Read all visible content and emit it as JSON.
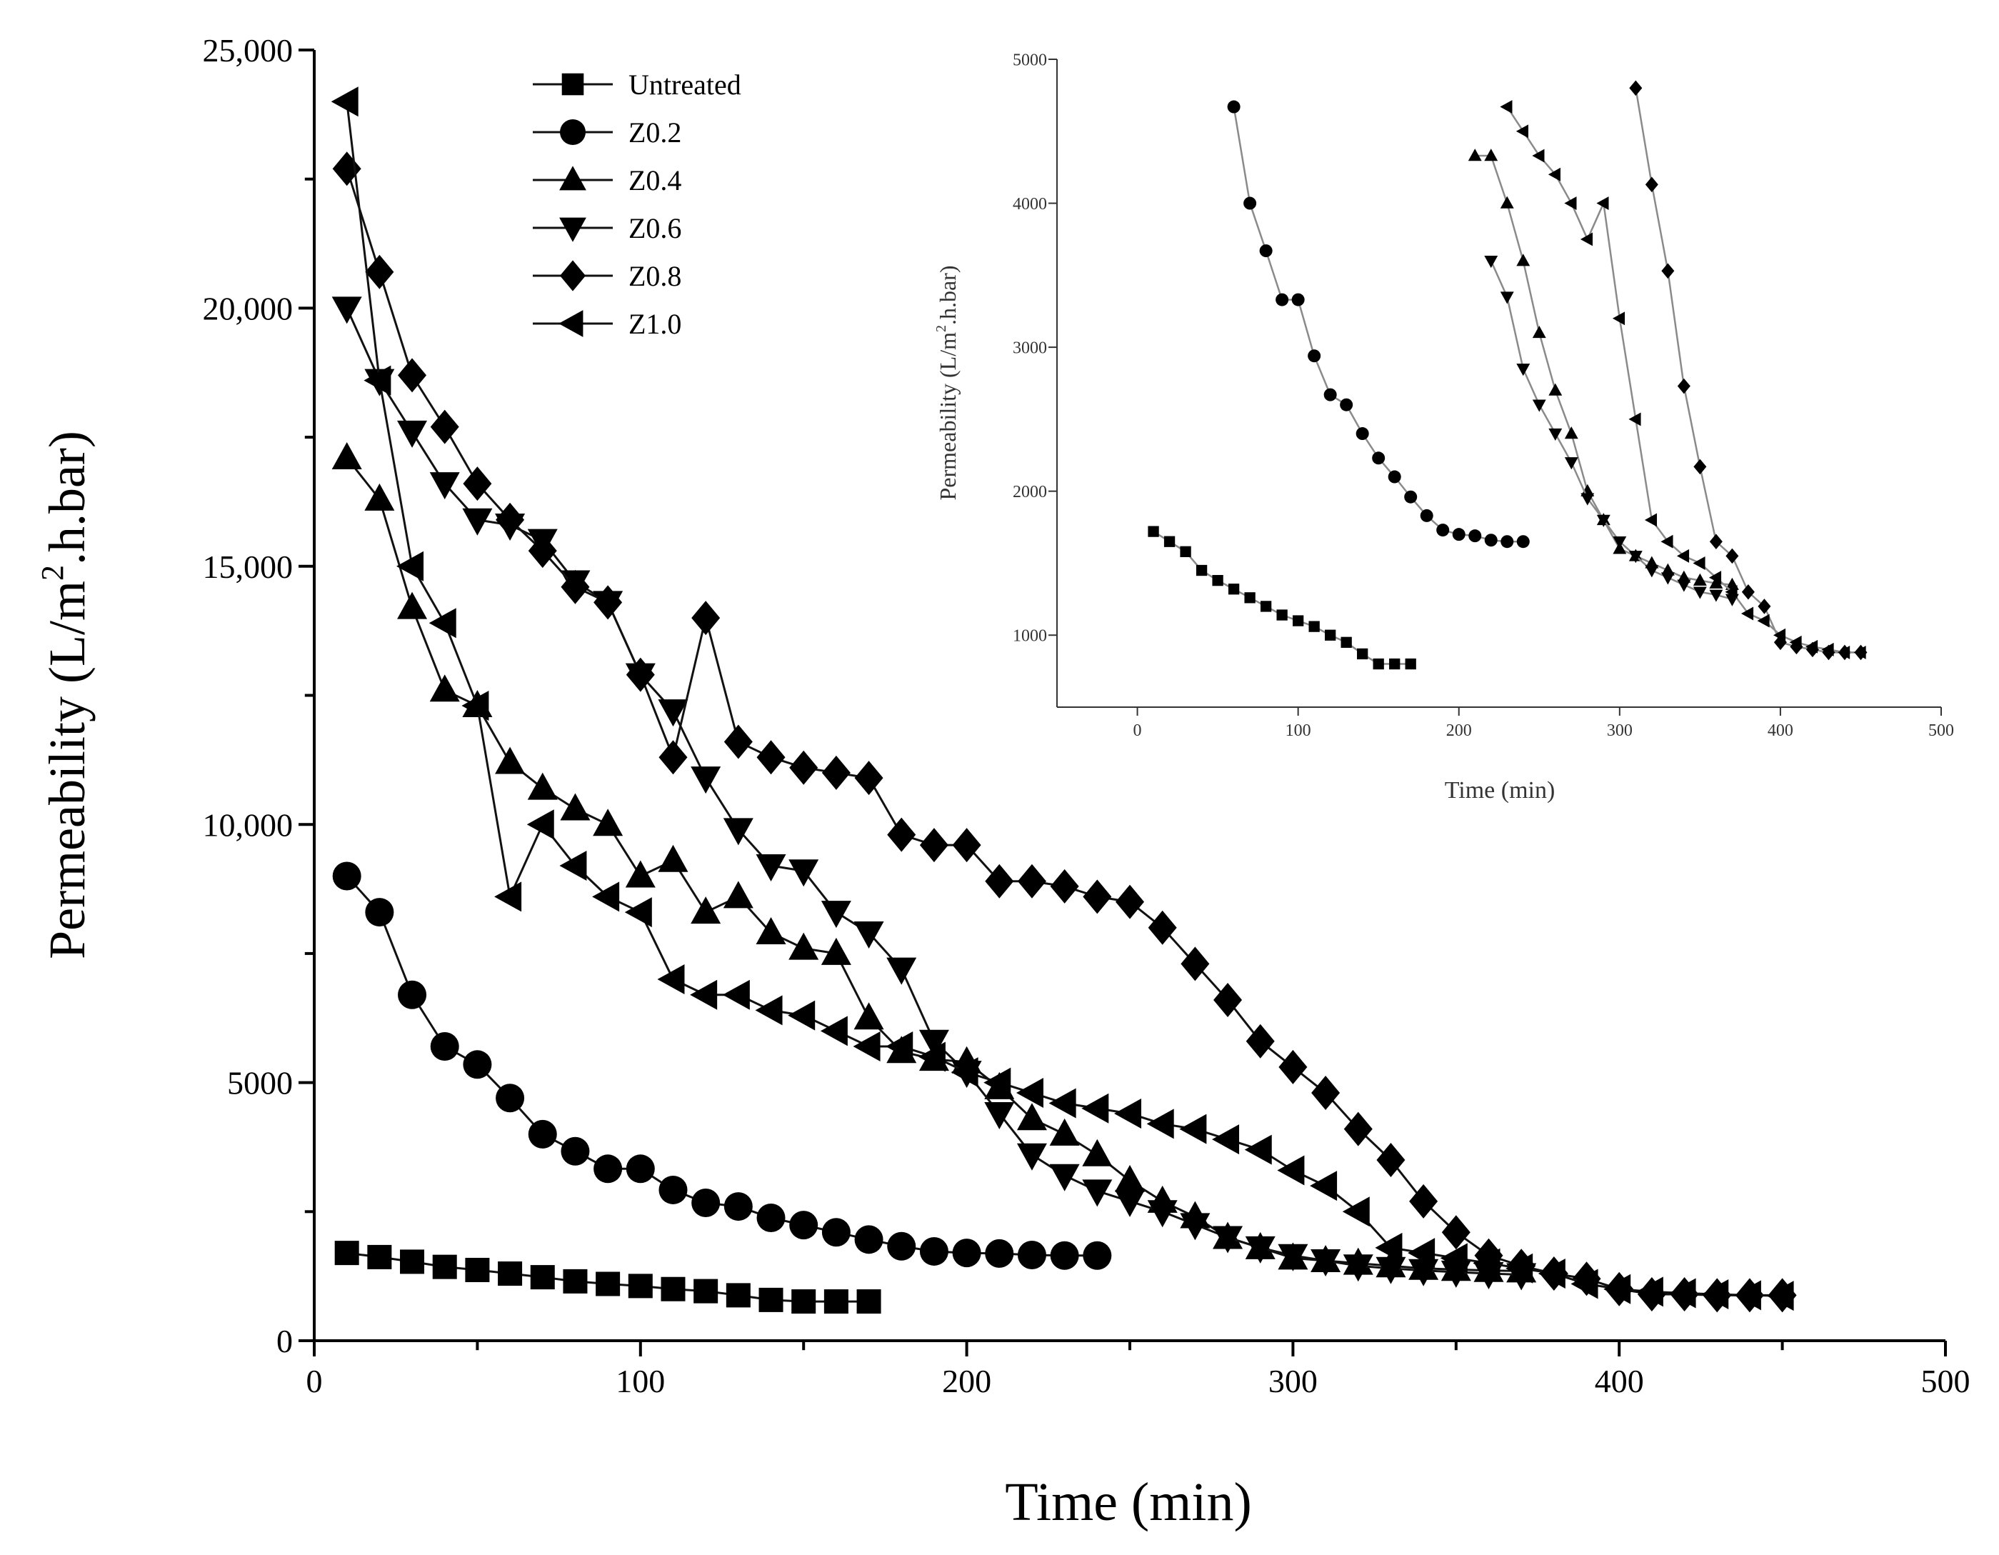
{
  "chart_data": [
    {
      "type": "line",
      "title": "",
      "xlabel": "Time (min)",
      "ylabel_main": "Permeability (L/m",
      "ylabel_sup": "2",
      "ylabel_tail": ".h.bar)",
      "xlim": [
        0,
        500
      ],
      "ylim": [
        0,
        25000
      ],
      "x_ticks": [
        0,
        100,
        200,
        300,
        400,
        500
      ],
      "x_tick_labels": [
        "0",
        "100",
        "200",
        "300",
        "400",
        "500"
      ],
      "y_ticks": [
        0,
        5000,
        10000,
        15000,
        20000,
        25000
      ],
      "y_tick_labels": [
        "0",
        "5000",
        "10,000",
        "15,000",
        "20,000",
        "25,000"
      ],
      "legend_position": "top-left",
      "series": [
        {
          "name": "Untreated",
          "marker": "square",
          "x": [
            10,
            20,
            30,
            40,
            50,
            60,
            70,
            80,
            90,
            100,
            110,
            120,
            130,
            140,
            150,
            160,
            170
          ],
          "y": [
            1700,
            1620,
            1530,
            1430,
            1370,
            1300,
            1230,
            1150,
            1100,
            1060,
            1000,
            960,
            880,
            790,
            760,
            760,
            760
          ]
        },
        {
          "name": "Z0.2",
          "marker": "circle",
          "x": [
            10,
            20,
            30,
            40,
            50,
            60,
            70,
            80,
            90,
            100,
            110,
            120,
            130,
            140,
            150,
            160,
            170,
            180,
            190,
            200,
            210,
            220,
            230,
            240
          ],
          "y": [
            9000,
            8300,
            6700,
            5700,
            5350,
            4700,
            4000,
            3670,
            3330,
            3330,
            2920,
            2670,
            2600,
            2380,
            2240,
            2100,
            1960,
            1830,
            1730,
            1700,
            1690,
            1660,
            1650,
            1650
          ]
        },
        {
          "name": "Z0.4",
          "marker": "triangle-up",
          "x": [
            10,
            20,
            30,
            40,
            50,
            60,
            70,
            80,
            90,
            100,
            110,
            120,
            130,
            140,
            150,
            160,
            170,
            180,
            190,
            200,
            210,
            220,
            230,
            240,
            250,
            260,
            270,
            280,
            290,
            300,
            310,
            320,
            330,
            340,
            350,
            360,
            370
          ],
          "y": [
            17100,
            16300,
            14200,
            12600,
            12300,
            11200,
            10700,
            10300,
            10000,
            9000,
            9300,
            8300,
            8600,
            7900,
            7600,
            7500,
            6250,
            5600,
            5450,
            5400,
            4900,
            4300,
            4000,
            3600,
            3100,
            2700,
            2400,
            2000,
            1800,
            1600,
            1550,
            1500,
            1450,
            1400,
            1380,
            1360,
            1350
          ]
        },
        {
          "name": "Z0.6",
          "marker": "triangle-down",
          "x": [
            10,
            20,
            30,
            40,
            50,
            60,
            70,
            80,
            90,
            100,
            110,
            120,
            130,
            140,
            150,
            160,
            170,
            180,
            190,
            200,
            210,
            220,
            230,
            240,
            250,
            260,
            270,
            280,
            290,
            300,
            310,
            320,
            330,
            340,
            350,
            360,
            370
          ],
          "y": [
            20000,
            18600,
            17600,
            16600,
            15900,
            15800,
            15500,
            14700,
            14300,
            12900,
            12200,
            10900,
            9900,
            9200,
            9100,
            8300,
            7900,
            7200,
            5800,
            5200,
            4400,
            3600,
            3200,
            2900,
            2700,
            2500,
            2250,
            2000,
            1800,
            1650,
            1550,
            1450,
            1400,
            1360,
            1330,
            1300,
            1280
          ]
        },
        {
          "name": "Z0.8",
          "marker": "diamond",
          "x": [
            10,
            20,
            30,
            40,
            50,
            60,
            70,
            80,
            90,
            100,
            110,
            120,
            130,
            140,
            150,
            160,
            170,
            180,
            190,
            200,
            210,
            220,
            230,
            240,
            250,
            260,
            270,
            280,
            290,
            300,
            310,
            320,
            330,
            340,
            350,
            360,
            370,
            380,
            390,
            400,
            410,
            420,
            430,
            440,
            450
          ],
          "y": [
            22700,
            20700,
            18700,
            17700,
            16600,
            15900,
            15300,
            14600,
            14300,
            12900,
            11300,
            14000,
            11600,
            11300,
            11100,
            11000,
            10900,
            9800,
            9600,
            9600,
            8900,
            8900,
            8800,
            8600,
            8500,
            8000,
            7300,
            6600,
            5800,
            5300,
            4800,
            4100,
            3500,
            2700,
            2100,
            1650,
            1450,
            1300,
            1200,
            1000,
            900,
            900,
            880,
            880,
            880
          ]
        },
        {
          "name": "Z1.0",
          "marker": "triangle-left",
          "x": [
            10,
            20,
            30,
            40,
            50,
            60,
            70,
            80,
            90,
            100,
            110,
            120,
            130,
            140,
            150,
            160,
            170,
            180,
            190,
            200,
            210,
            220,
            230,
            240,
            250,
            260,
            270,
            280,
            290,
            300,
            310,
            320,
            330,
            340,
            350,
            360,
            370,
            380,
            390,
            400,
            410,
            420,
            430,
            440,
            450
          ],
          "y": [
            24000,
            18600,
            15000,
            13900,
            12300,
            8600,
            10000,
            9200,
            8600,
            8300,
            7000,
            6700,
            6700,
            6400,
            6300,
            6000,
            5700,
            5700,
            5500,
            5200,
            5000,
            4800,
            4600,
            4500,
            4400,
            4200,
            4100,
            3900,
            3700,
            3300,
            3000,
            2500,
            1800,
            1700,
            1600,
            1500,
            1400,
            1300,
            1100,
            1000,
            950,
            920,
            900,
            880,
            870
          ]
        }
      ]
    },
    {
      "type": "line",
      "title": "",
      "xlabel": "Time (min)",
      "ylabel_main": "Permeability (L/m",
      "ylabel_sup": "2",
      "ylabel_tail": ".h.bar)",
      "xlim": [
        -50,
        500
      ],
      "ylim": [
        500,
        5000
      ],
      "x_ticks": [
        0,
        100,
        200,
        300,
        400,
        500
      ],
      "x_tick_labels": [
        "0",
        "100",
        "200",
        "300",
        "400",
        "500"
      ],
      "y_ticks": [
        1000,
        2000,
        3000,
        4000,
        5000
      ],
      "y_tick_labels": [
        "1000",
        "2000",
        "3000",
        "4000",
        "5000"
      ],
      "series": [
        {
          "name": "Untreated",
          "marker": "square",
          "x": [
            10,
            20,
            30,
            40,
            50,
            60,
            70,
            80,
            90,
            100,
            110,
            120,
            130,
            140,
            150,
            160,
            170
          ],
          "y": [
            1720,
            1650,
            1580,
            1450,
            1380,
            1320,
            1260,
            1200,
            1140,
            1100,
            1060,
            1000,
            950,
            870,
            800,
            800,
            800
          ]
        },
        {
          "name": "Z0.2",
          "marker": "circle",
          "x": [
            60,
            70,
            80,
            90,
            100,
            110,
            120,
            130,
            140,
            150,
            160,
            170,
            180,
            190,
            200,
            210,
            220,
            230,
            240
          ],
          "y": [
            4670,
            4000,
            3670,
            3330,
            3330,
            2940,
            2670,
            2600,
            2400,
            2230,
            2100,
            1960,
            1830,
            1730,
            1700,
            1690,
            1660,
            1650,
            1650
          ]
        },
        {
          "name": "Z0.4",
          "marker": "triangle-up",
          "x": [
            210,
            220,
            230,
            240,
            250,
            260,
            270,
            280,
            290,
            300,
            310,
            320,
            330,
            340,
            350,
            360,
            370
          ],
          "y": [
            4330,
            4330,
            4000,
            3600,
            3100,
            2700,
            2400,
            2000,
            1800,
            1600,
            1550,
            1500,
            1450,
            1400,
            1380,
            1360,
            1350
          ]
        },
        {
          "name": "Z0.6",
          "marker": "triangle-down",
          "x": [
            220,
            230,
            240,
            250,
            260,
            270,
            280,
            290,
            300,
            310,
            320,
            330,
            340,
            350,
            360,
            370
          ],
          "y": [
            3600,
            3350,
            2850,
            2600,
            2400,
            2200,
            1950,
            1800,
            1650,
            1550,
            1450,
            1400,
            1350,
            1300,
            1280,
            1250
          ]
        },
        {
          "name": "Z0.8",
          "marker": "diamond",
          "x": [
            310,
            320,
            330,
            340,
            350,
            360,
            370,
            380,
            390,
            400,
            410,
            420,
            430,
            440,
            450
          ],
          "y": [
            4800,
            4130,
            3530,
            2730,
            2170,
            1650,
            1550,
            1300,
            1200,
            950,
            920,
            900,
            880,
            880,
            880
          ]
        },
        {
          "name": "Z1.0",
          "marker": "triangle-left",
          "x": [
            230,
            240,
            250,
            260,
            270,
            280,
            290,
            300,
            310,
            320,
            330,
            340,
            350,
            360,
            370,
            380,
            390,
            400,
            410,
            420,
            430,
            440,
            450
          ],
          "y": [
            4670,
            4500,
            4330,
            4200,
            4000,
            3750,
            4000,
            3200,
            2500,
            1800,
            1650,
            1550,
            1500,
            1400,
            1300,
            1150,
            1100,
            1000,
            950,
            920,
            900,
            880,
            880
          ]
        }
      ]
    }
  ]
}
